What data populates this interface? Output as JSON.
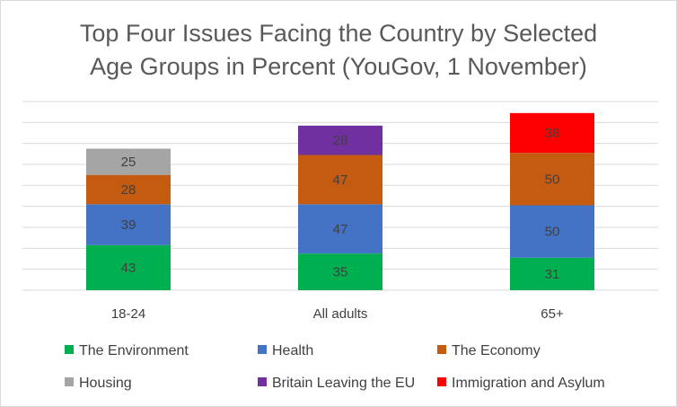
{
  "chart_data": {
    "type": "bar",
    "stacked": true,
    "title": "Top Four Issues Facing the Country by Selected Age Groups in Percent (YouGov, 1 November)",
    "title_lines": [
      "Top Four Issues Facing the Country by Selected",
      "Age Groups in Percent (YouGov, 1 November)"
    ],
    "categories": [
      "18-24",
      "All adults",
      "65+"
    ],
    "ylim": [
      0,
      180
    ],
    "grid": true,
    "legend_position": "bottom",
    "series": [
      {
        "name": "The Environment",
        "color": "#00b050",
        "values": [
          43,
          35,
          31
        ]
      },
      {
        "name": "Health",
        "color": "#4472c4",
        "values": [
          39,
          47,
          50
        ]
      },
      {
        "name": "The Economy",
        "color": "#c55a11",
        "values": [
          28,
          47,
          50
        ]
      },
      {
        "name": "Housing",
        "color": "#a5a5a5",
        "values": [
          25,
          null,
          null
        ]
      },
      {
        "name": "Britain Leaving the EU",
        "color": "#7030a0",
        "values": [
          null,
          28,
          null
        ]
      },
      {
        "name": "Immigration and Asylum",
        "color": "#ff0000",
        "values": [
          null,
          null,
          38
        ]
      }
    ]
  }
}
